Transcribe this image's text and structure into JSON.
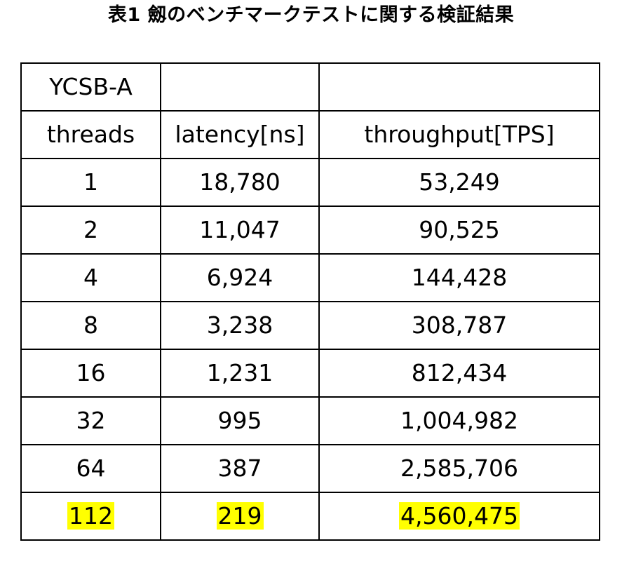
{
  "caption": "表1  劔のベンチマークテストに関する検証結果",
  "table": {
    "top_left_label": "YCSB-A",
    "headers": [
      "threads",
      "latency[ns]",
      "throughput[TPS]"
    ],
    "rows": [
      [
        "1",
        "18,780",
        "53,249"
      ],
      [
        "2",
        "11,047",
        "90,525"
      ],
      [
        "4",
        "6,924",
        "144,428"
      ],
      [
        "8",
        "3,238",
        "308,787"
      ],
      [
        "16",
        "1,231",
        "812,434"
      ],
      [
        "32",
        "995",
        "1,004,982"
      ],
      [
        "64",
        "387",
        "2,585,706"
      ],
      [
        "112",
        "219",
        "4,560,475"
      ]
    ],
    "highlight_color": "#ffff00"
  }
}
